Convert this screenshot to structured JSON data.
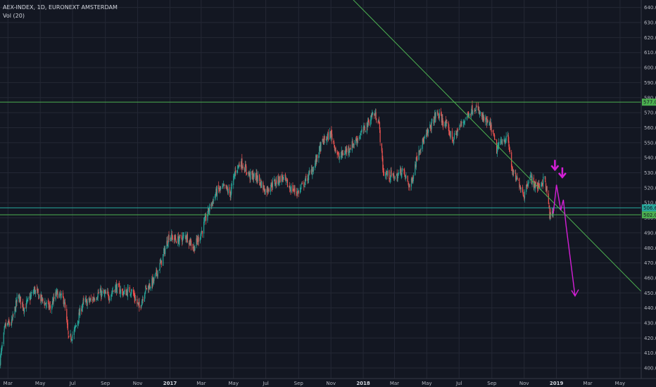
{
  "header": {
    "symbol_line": "AEX-INDEX, 1D, EURONEXT AMSTERDAM",
    "indicator": "Vol (20)"
  },
  "chart_data": {
    "type": "candlestick",
    "y_axis": {
      "min": 393,
      "max": 645,
      "ticks": [
        400,
        410,
        420,
        430,
        440,
        450,
        460,
        470,
        480,
        490,
        500,
        510,
        520,
        530,
        540,
        550,
        560,
        570,
        580,
        590,
        600,
        610,
        620,
        630,
        640
      ],
      "tick_labels": [
        "400.00",
        "410.00",
        "420.00",
        "430.00",
        "440.00",
        "450.00",
        "460.00",
        "470.00",
        "480.00",
        "490.00",
        "500.00",
        "510.00",
        "520.00",
        "530.00",
        "540.00",
        "550.00",
        "560.00",
        "570.00",
        "580.00",
        "590.00",
        "600.00",
        "610.00",
        "620.00",
        "630.00",
        "640.00"
      ]
    },
    "x_axis": {
      "start": "2016-02-15",
      "end": "2019-06-10",
      "ticks": [
        {
          "date": "2016-03-01",
          "label": "Mar",
          "bold": false
        },
        {
          "date": "2016-05-01",
          "label": "May",
          "bold": false
        },
        {
          "date": "2016-07-01",
          "label": "Jul",
          "bold": false
        },
        {
          "date": "2016-09-01",
          "label": "Sep",
          "bold": false
        },
        {
          "date": "2016-11-01",
          "label": "Nov",
          "bold": false
        },
        {
          "date": "2017-01-01",
          "label": "2017",
          "bold": true
        },
        {
          "date": "2017-03-01",
          "label": "Mar",
          "bold": false
        },
        {
          "date": "2017-05-01",
          "label": "May",
          "bold": false
        },
        {
          "date": "2017-07-01",
          "label": "Jul",
          "bold": false
        },
        {
          "date": "2017-09-01",
          "label": "Sep",
          "bold": false
        },
        {
          "date": "2017-11-01",
          "label": "Nov",
          "bold": false
        },
        {
          "date": "2018-01-01",
          "label": "2018",
          "bold": true
        },
        {
          "date": "2018-03-01",
          "label": "Mar",
          "bold": false
        },
        {
          "date": "2018-05-01",
          "label": "May",
          "bold": false
        },
        {
          "date": "2018-07-01",
          "label": "Jul",
          "bold": false
        },
        {
          "date": "2018-09-01",
          "label": "Sep",
          "bold": false
        },
        {
          "date": "2018-11-01",
          "label": "Nov",
          "bold": false
        },
        {
          "date": "2019-01-01",
          "label": "2019",
          "bold": true
        },
        {
          "date": "2019-03-01",
          "label": "Mar",
          "bold": false
        },
        {
          "date": "2019-05-01",
          "label": "May",
          "bold": false
        }
      ]
    },
    "price_path": [
      [
        "2016-02-15",
        405
      ],
      [
        "2016-02-25",
        428
      ],
      [
        "2016-03-08",
        430
      ],
      [
        "2016-03-20",
        448
      ],
      [
        "2016-04-01",
        440
      ],
      [
        "2016-04-20",
        452
      ],
      [
        "2016-05-05",
        445
      ],
      [
        "2016-05-20",
        440
      ],
      [
        "2016-06-01",
        450
      ],
      [
        "2016-06-15",
        445
      ],
      [
        "2016-06-24",
        418
      ],
      [
        "2016-07-05",
        425
      ],
      [
        "2016-07-20",
        443
      ],
      [
        "2016-08-05",
        445
      ],
      [
        "2016-08-20",
        450
      ],
      [
        "2016-09-08",
        448
      ],
      [
        "2016-09-20",
        454
      ],
      [
        "2016-10-05",
        450
      ],
      [
        "2016-10-20",
        452
      ],
      [
        "2016-11-04",
        440
      ],
      [
        "2016-11-15",
        452
      ],
      [
        "2016-12-01",
        458
      ],
      [
        "2016-12-15",
        470
      ],
      [
        "2016-12-30",
        488
      ],
      [
        "2017-01-15",
        485
      ],
      [
        "2017-02-01",
        488
      ],
      [
        "2017-02-15",
        480
      ],
      [
        "2017-03-01",
        490
      ],
      [
        "2017-03-15",
        505
      ],
      [
        "2017-03-31",
        518
      ],
      [
        "2017-04-15",
        520
      ],
      [
        "2017-04-25",
        516
      ],
      [
        "2017-05-05",
        532
      ],
      [
        "2017-05-15",
        537
      ],
      [
        "2017-06-01",
        528
      ],
      [
        "2017-06-15",
        527
      ],
      [
        "2017-06-30",
        518
      ],
      [
        "2017-07-15",
        523
      ],
      [
        "2017-08-01",
        527
      ],
      [
        "2017-08-15",
        520
      ],
      [
        "2017-08-31",
        517
      ],
      [
        "2017-09-15",
        525
      ],
      [
        "2017-10-01",
        535
      ],
      [
        "2017-10-15",
        550
      ],
      [
        "2017-11-01",
        556
      ],
      [
        "2017-11-15",
        540
      ],
      [
        "2017-12-01",
        545
      ],
      [
        "2017-12-15",
        550
      ],
      [
        "2018-01-05",
        560
      ],
      [
        "2018-01-20",
        570
      ],
      [
        "2018-01-30",
        565
      ],
      [
        "2018-02-08",
        530
      ],
      [
        "2018-02-20",
        528
      ],
      [
        "2018-03-05",
        527
      ],
      [
        "2018-03-15",
        532
      ],
      [
        "2018-03-31",
        520
      ],
      [
        "2018-04-15",
        545
      ],
      [
        "2018-05-01",
        555
      ],
      [
        "2018-05-20",
        570
      ],
      [
        "2018-06-05",
        562
      ],
      [
        "2018-06-20",
        552
      ],
      [
        "2018-07-01",
        560
      ],
      [
        "2018-07-20",
        570
      ],
      [
        "2018-07-31",
        574
      ],
      [
        "2018-08-15",
        566
      ],
      [
        "2018-08-31",
        560
      ],
      [
        "2018-09-10",
        545
      ],
      [
        "2018-09-20",
        552
      ],
      [
        "2018-10-01",
        553
      ],
      [
        "2018-10-10",
        530
      ],
      [
        "2018-10-24",
        522
      ],
      [
        "2018-11-01",
        515
      ],
      [
        "2018-11-10",
        528
      ],
      [
        "2018-11-25",
        520
      ],
      [
        "2018-12-10",
        526
      ],
      [
        "2018-12-20",
        500
      ],
      [
        "2018-12-27",
        505
      ]
    ],
    "horizontal_lines": [
      {
        "value": 577.0,
        "color": "#4caf50",
        "label": "577.00"
      },
      {
        "value": 502.0,
        "color": "#4caf50",
        "label": "502.00"
      },
      {
        "value": 506.65,
        "color": "#26a69a",
        "label": "506.65"
      }
    ],
    "trend_line": {
      "color": "#4caf50",
      "points": [
        [
          "2017-12-05",
          648
        ],
        [
          "2019-06-10",
          451
        ]
      ]
    },
    "projection": {
      "color": "#d41fd6",
      "points": [
        [
          "2018-12-26",
          503
        ],
        [
          "2019-01-01",
          522
        ],
        [
          "2019-01-09",
          505
        ],
        [
          "2019-01-14",
          512
        ],
        [
          "2019-01-19",
          495
        ],
        [
          "2019-02-05",
          448
        ]
      ]
    },
    "arrows": [
      {
        "date": "2018-12-29",
        "value": 532,
        "color": "#d41fd6"
      },
      {
        "date": "2019-01-12",
        "value": 527,
        "color": "#d41fd6"
      }
    ],
    "colors": {
      "up": "#26a69a",
      "down": "#ef5350",
      "grid": "#242835",
      "background": "#131722"
    }
  }
}
